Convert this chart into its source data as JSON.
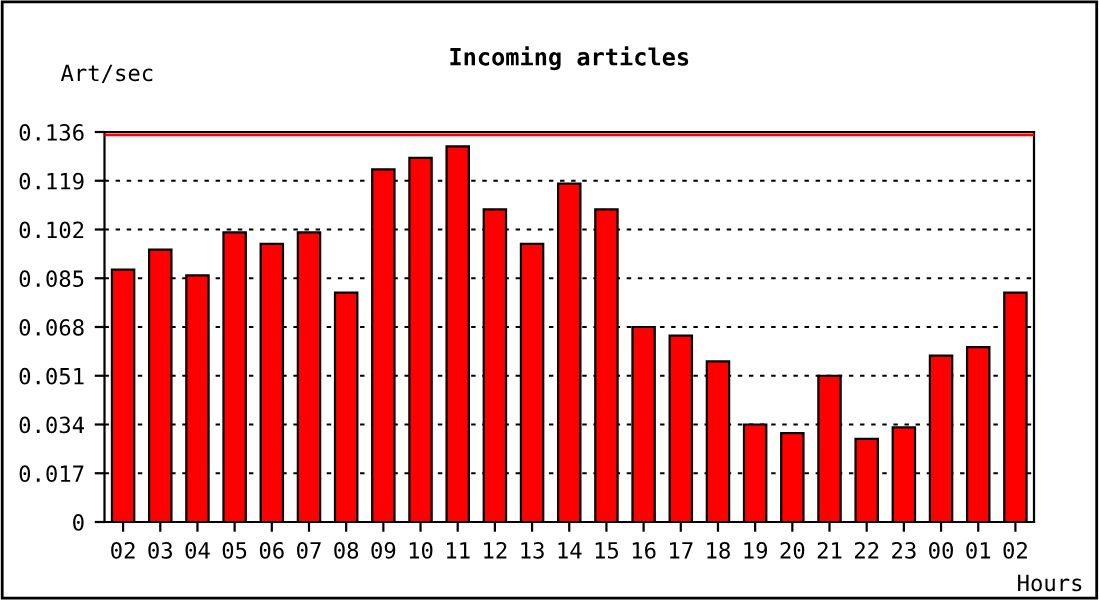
{
  "chart_data": {
    "type": "bar",
    "title": "Incoming articles",
    "ylabel": "Art/sec",
    "xlabel": "Hours",
    "categories": [
      "02",
      "03",
      "04",
      "05",
      "06",
      "07",
      "08",
      "09",
      "10",
      "11",
      "12",
      "13",
      "14",
      "15",
      "16",
      "17",
      "18",
      "19",
      "20",
      "21",
      "22",
      "23",
      "00",
      "01",
      "02"
    ],
    "values": [
      0.088,
      0.095,
      0.086,
      0.101,
      0.097,
      0.101,
      0.08,
      0.123,
      0.127,
      0.131,
      0.109,
      0.097,
      0.118,
      0.109,
      0.068,
      0.065,
      0.056,
      0.034,
      0.031,
      0.051,
      0.029,
      0.033,
      0.058,
      0.061,
      0.08
    ],
    "color": "#ff0000",
    "ylim": [
      0,
      0.136
    ],
    "yticks": [
      0,
      0.017,
      0.034,
      0.051,
      0.068,
      0.085,
      0.102,
      0.119,
      0.136
    ],
    "grid": "y",
    "ref_lines": [
      {
        "axis": "y",
        "value": 0.135,
        "color": "#ff0000"
      }
    ]
  }
}
